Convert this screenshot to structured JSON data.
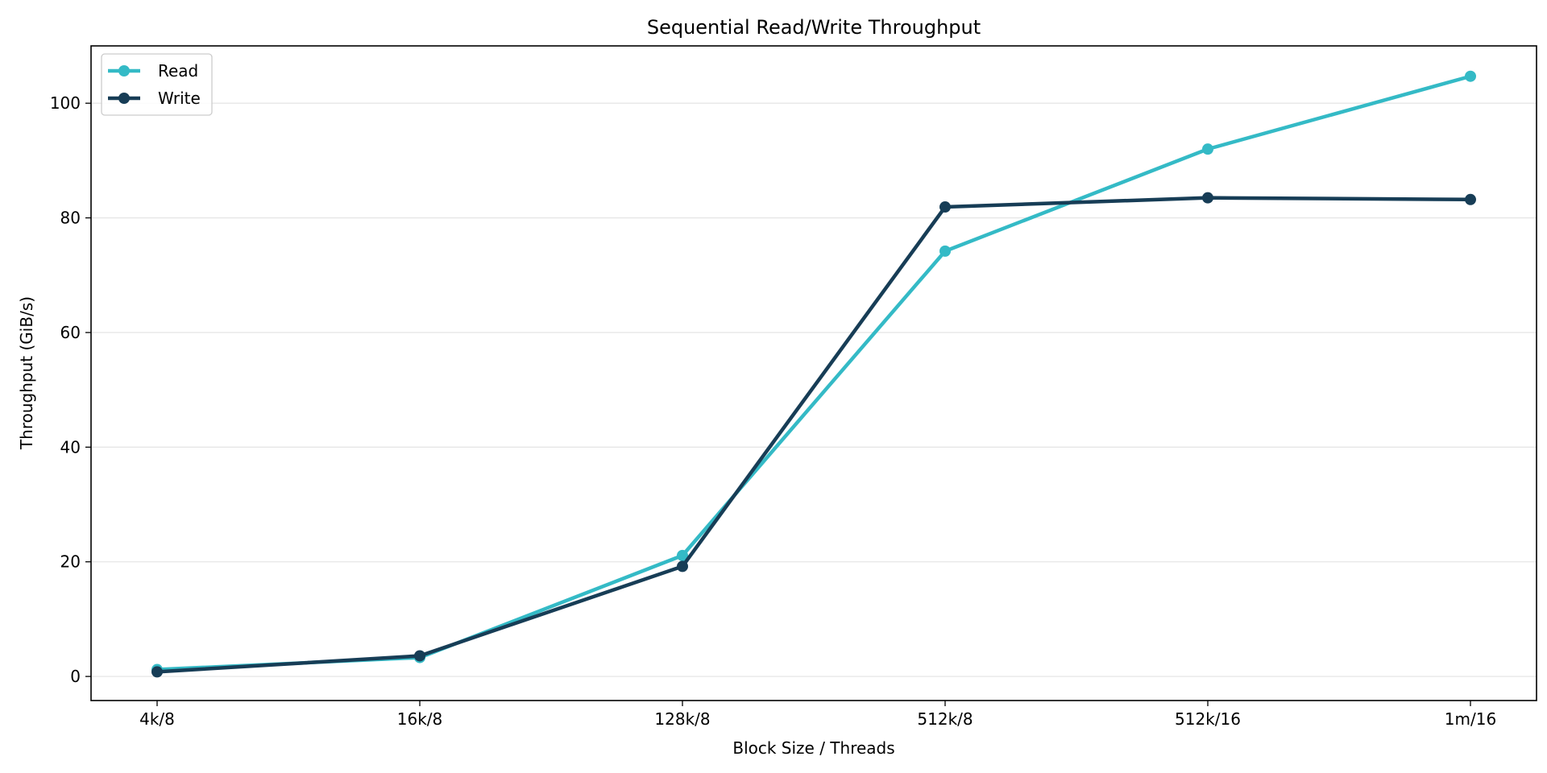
{
  "chart_data": {
    "type": "line",
    "title": "Sequential Read/Write Throughput",
    "xlabel": "Block Size / Threads",
    "ylabel": "Throughput (GiB/s)",
    "categories": [
      "4k/8",
      "16k/8",
      "128k/8",
      "512k/8",
      "512k/16",
      "1m/16"
    ],
    "ylim": [
      -4.2,
      110
    ],
    "yticks": [
      0,
      20,
      40,
      60,
      80,
      100
    ],
    "grid": "horizontal",
    "legend_position": "upper-left",
    "series": [
      {
        "name": "Read",
        "color": "#34BAC6",
        "values": [
          1.2,
          3.3,
          21.1,
          74.2,
          92.0,
          104.7
        ]
      },
      {
        "name": "Write",
        "color": "#173D56",
        "values": [
          0.8,
          3.6,
          19.2,
          81.9,
          83.5,
          83.2
        ]
      }
    ]
  }
}
